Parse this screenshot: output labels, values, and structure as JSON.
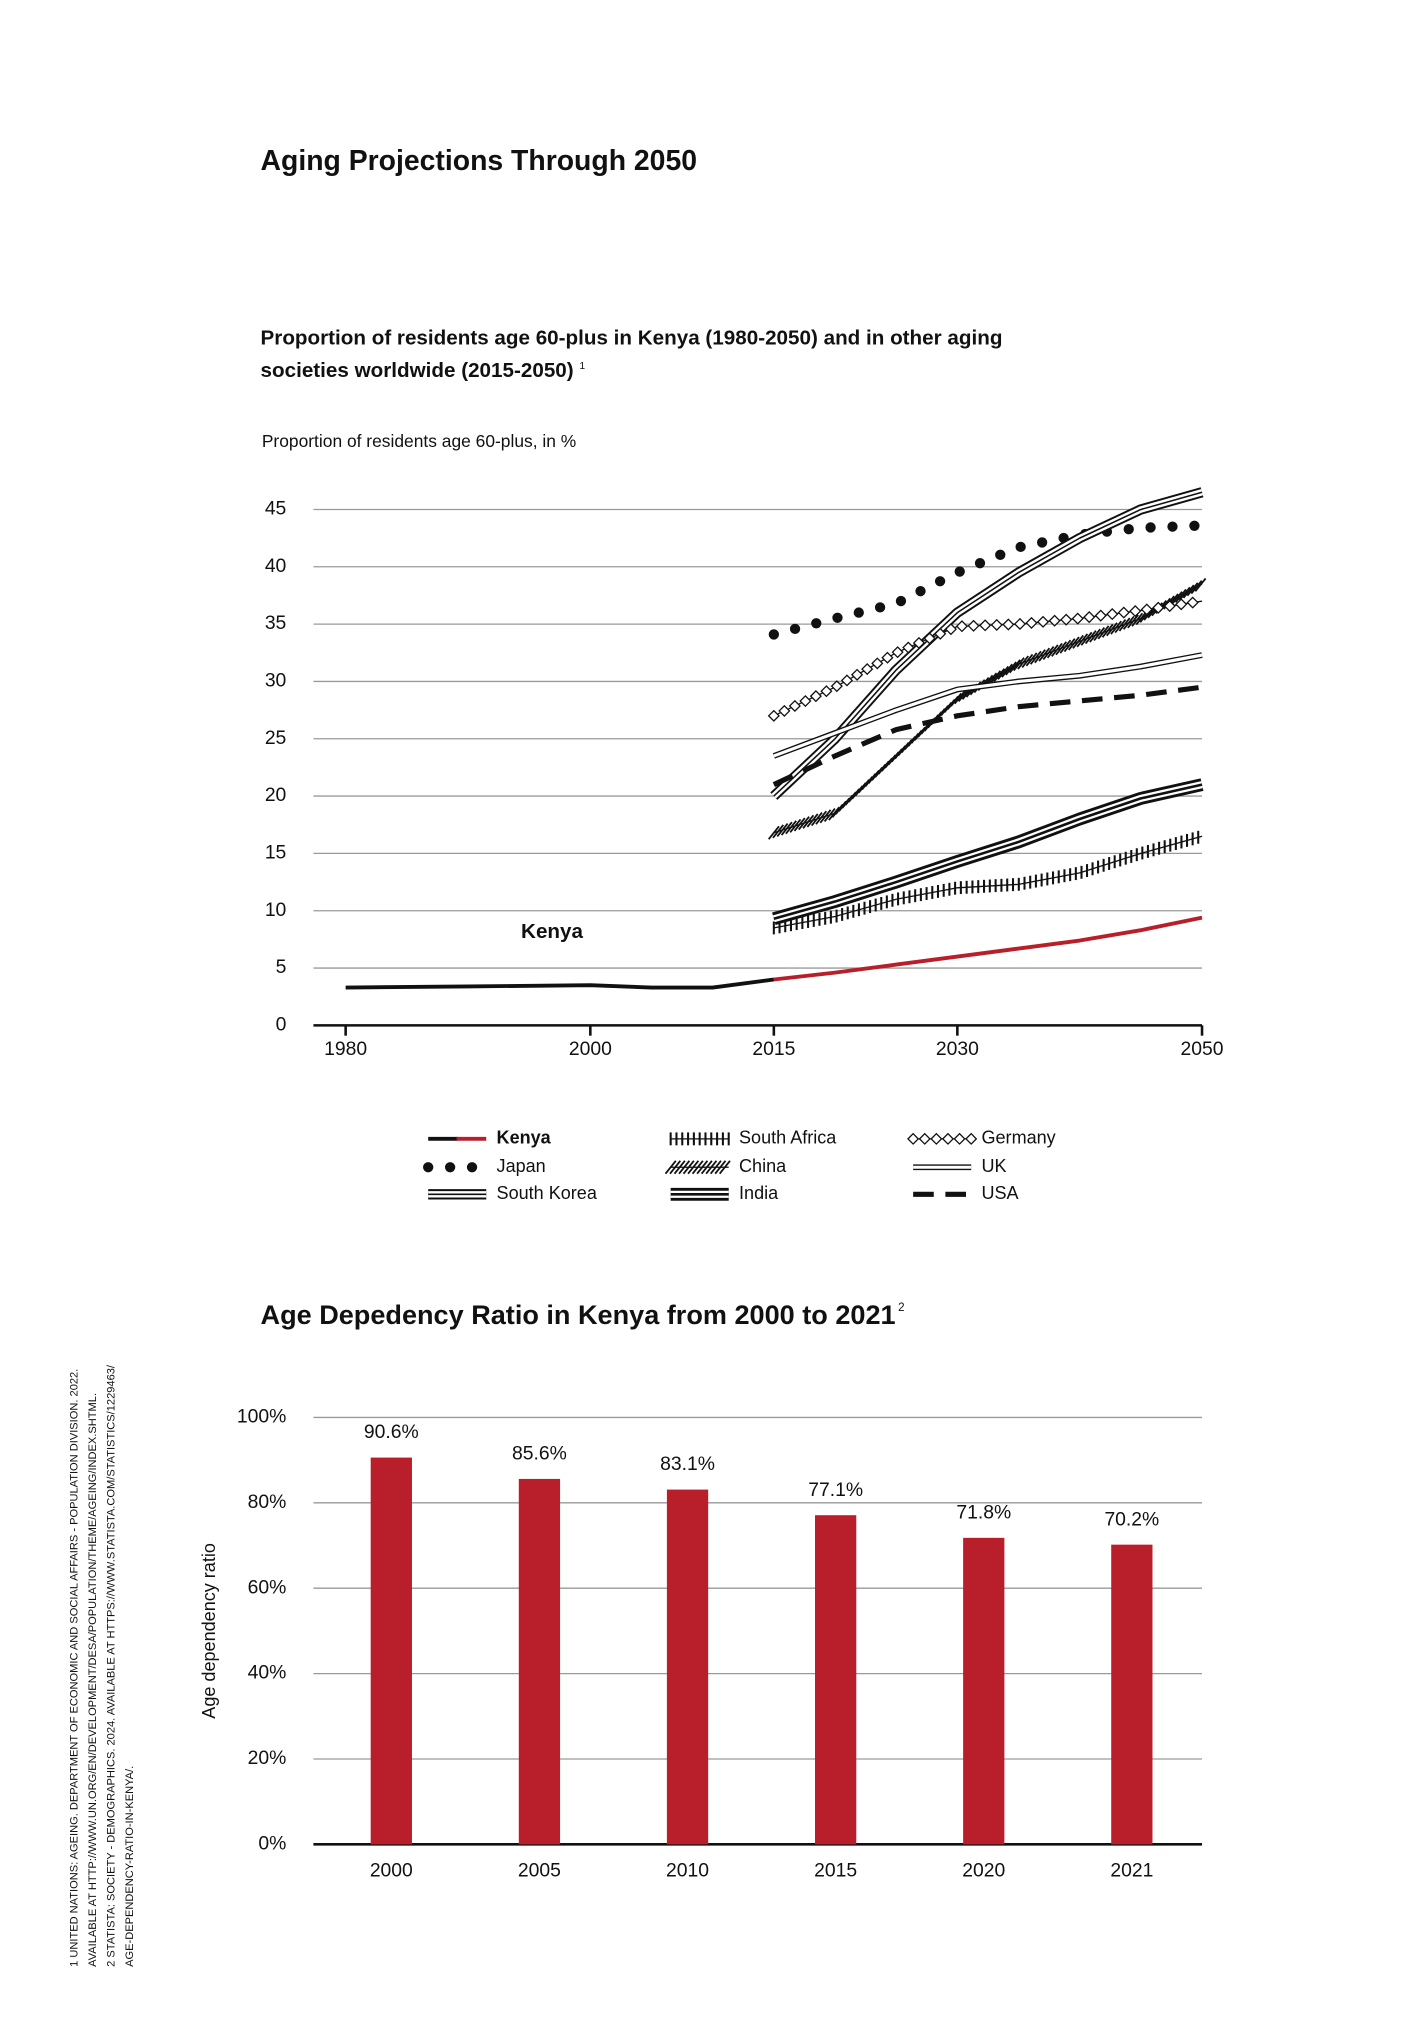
{
  "header": {
    "title": "Aging Projections Through 2050"
  },
  "chart_data": [
    {
      "type": "line",
      "title": "Proportion of residents age 60-plus in Kenya (1980-2050) and in other aging societies worldwide (2015-2050)",
      "title_note": "1",
      "y_label": "Proportion of residents age 60-plus, in %",
      "annotation": "Kenya",
      "xlim": [
        1980,
        2050
      ],
      "xticks": [
        1980,
        2000,
        2015,
        2030,
        2050
      ],
      "ylim": [
        0,
        45
      ],
      "yticks": [
        0,
        5,
        10,
        15,
        20,
        25,
        30,
        35,
        40,
        45
      ],
      "grid": true,
      "x": [
        2015,
        2020,
        2025,
        2030,
        2035,
        2040,
        2045,
        2050
      ],
      "series": [
        {
          "name": "Kenya",
          "x": [
            1980,
            1990,
            2000,
            2005,
            2010,
            2015,
            2020,
            2025,
            2030,
            2035,
            2040,
            2045,
            2050
          ],
          "values": [
            3.3,
            3.4,
            3.5,
            3.3,
            3.3,
            4.0,
            4.6,
            5.3,
            6.0,
            6.7,
            7.4,
            8.3,
            9.4
          ],
          "color": "#111111",
          "projected_color": "#b81f2a",
          "projected_from": 2015,
          "style": "solid",
          "emphasis": true
        },
        {
          "name": "Japan",
          "values": [
            34.1,
            35.5,
            36.8,
            39.5,
            41.7,
            42.8,
            43.4,
            43.6
          ],
          "color": "#111111",
          "style": "dots"
        },
        {
          "name": "South Korea",
          "values": [
            20.0,
            25.0,
            31.0,
            36.0,
            39.5,
            42.5,
            45.0,
            46.5
          ],
          "color": "#111111",
          "style": "triple"
        },
        {
          "name": "South Africa",
          "values": [
            8.5,
            9.5,
            11.0,
            12.0,
            12.3,
            13.3,
            15.0,
            16.5
          ],
          "color": "#111111",
          "style": "vhatch"
        },
        {
          "name": "China",
          "values": [
            16.8,
            18.5,
            23.5,
            28.5,
            31.5,
            33.5,
            35.5,
            38.5
          ],
          "color": "#111111",
          "style": "hatch"
        },
        {
          "name": "India",
          "values": [
            9.3,
            10.8,
            12.5,
            14.3,
            16.0,
            18.0,
            19.8,
            21.0
          ],
          "color": "#111111",
          "style": "triple-bold"
        },
        {
          "name": "Germany",
          "values": [
            27.0,
            29.5,
            32.5,
            34.8,
            35.0,
            35.5,
            36.2,
            37.0
          ],
          "color": "#111111",
          "style": "diamonds"
        },
        {
          "name": "UK",
          "values": [
            23.5,
            25.5,
            27.5,
            29.3,
            30.0,
            30.5,
            31.3,
            32.3
          ],
          "color": "#111111",
          "style": "double"
        },
        {
          "name": "USA",
          "values": [
            21.0,
            23.5,
            25.8,
            27.0,
            27.8,
            28.3,
            28.8,
            29.5
          ],
          "color": "#111111",
          "style": "dashed"
        }
      ]
    },
    {
      "type": "bar",
      "title": "Age Depedency Ratio in Kenya from 2000 to 2021",
      "title_note": "2",
      "y_label": "Age dependency ratio",
      "categories": [
        "2000",
        "2005",
        "2010",
        "2015",
        "2020",
        "2021"
      ],
      "values": [
        90.6,
        85.6,
        83.1,
        77.1,
        71.8,
        70.2
      ],
      "value_labels": [
        "90.6%",
        "85.6%",
        "83.1%",
        "77.1%",
        "71.8%",
        "70.2%"
      ],
      "color": "#b81f2a",
      "ylim": [
        0,
        100
      ],
      "yticks": [
        {
          "value": 0,
          "label": "0%"
        },
        {
          "value": 20,
          "label": "20%"
        },
        {
          "value": 40,
          "label": "40%"
        },
        {
          "value": 60,
          "label": "60%"
        },
        {
          "value": 80,
          "label": "80%"
        },
        {
          "value": 100,
          "label": "100%"
        }
      ],
      "grid": true
    }
  ],
  "footnotes": [
    "1 UNITED NATIONS: AGEING. DEPARTMENT OF ECONOMIC AND SOCIAL AFFAIRS - POPULATION DIVISION. 2022.",
    "AVAILABLE AT HTTP://WWW.UN.ORG/EN/DEVELOPMENT/DESA/POPULATION/THEME/AGEING/INDEX.SHTML.",
    "2 STATISTA: SOCIETY - DEMOGRAPHICS. 2024. AVAILABLE AT HTTPS://WWW.STATISTA.COM/STATISTICS/1229463/",
    "AGE-DEPENDENCY-RATIO-IN-KENYA/."
  ]
}
